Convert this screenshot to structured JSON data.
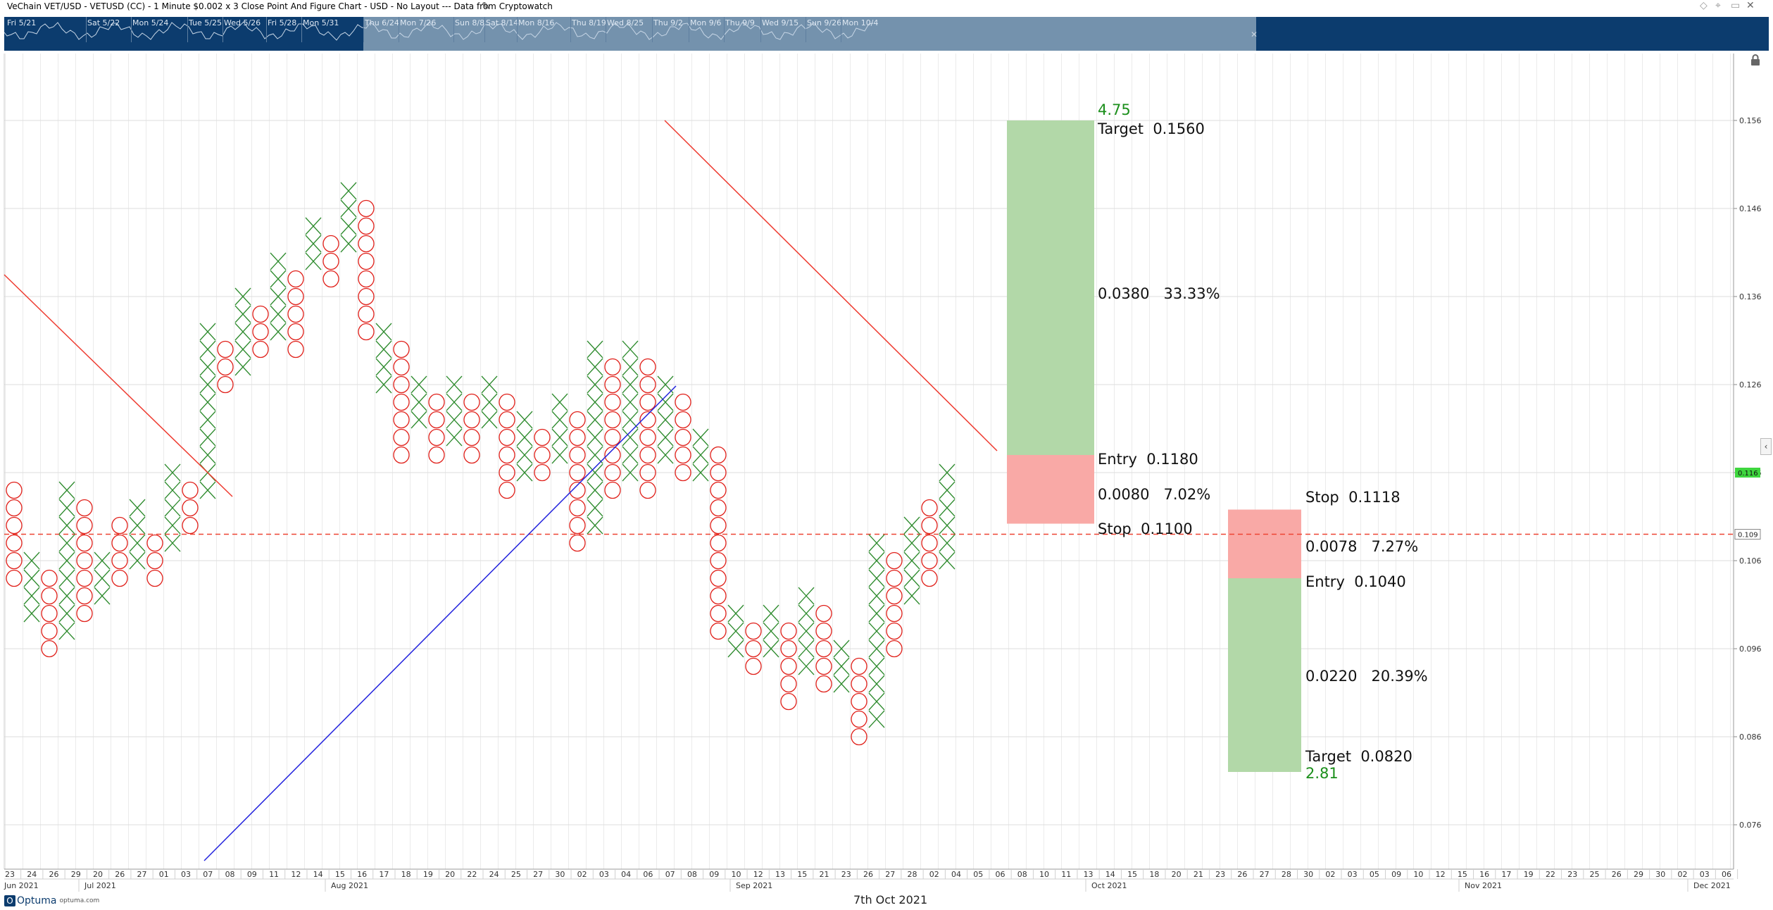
{
  "window": {
    "title": "VeChain VET/USD - VETUSD (CC) - 1 Minute $0.002 x 3 Close Point And Figure Chart - USD - No Layout --- Data from Cryptowatch"
  },
  "navigator": {
    "labels": [
      "Fri 5/21",
      "Sat 5/22",
      "Mon 5/24",
      "Tue 5/25",
      "Wed 5/26",
      "Fri 5/28",
      "Mon 5/31",
      "Thu 6/24",
      "Mon 7/26",
      "Sun 8/8",
      "Sat 8/14",
      "Mon 8/16",
      "Thu 8/19",
      "Wed 8/25",
      "Thu 9/2",
      "Mon 9/6",
      "Thu 9/9",
      "Wed 9/15",
      "Sun 9/26",
      "Mon 10/4"
    ]
  },
  "footer": {
    "date": "7th Oct 2021",
    "logo_name": "Optuma",
    "logo_url": "optuma.com"
  },
  "colors": {
    "x_mark": "#2e8b2e",
    "o_mark": "#e0201a",
    "trend_down": "#ee3a2f",
    "trend_up": "#2222dd",
    "reward_zone": "#b2d8a8",
    "risk_zone": "#f9a9a6",
    "ratio_text": "#1b8f1b",
    "price_badge": "#3ed63e",
    "nav_bg": "#0c3c6e",
    "nav_window": "#7492ad"
  },
  "chart_data": {
    "type": "point_and_figure",
    "box_size": 0.002,
    "reversal": 3,
    "ylim": [
      0.0715,
      0.1605
    ],
    "y_ticks": [
      0.156,
      0.146,
      0.136,
      0.126,
      0.116,
      0.106,
      0.096,
      0.086,
      0.076
    ],
    "last_price": 0.116,
    "stop_line_price": 0.109,
    "x_ticks": [
      "23",
      "24",
      "26",
      "29",
      "20",
      "26",
      "27",
      "01",
      "03",
      "07",
      "08",
      "09",
      "11",
      "12",
      "14",
      "15",
      "16",
      "17",
      "18",
      "19",
      "20",
      "22",
      "24",
      "25",
      "27",
      "30",
      "02",
      "03",
      "04",
      "06",
      "07",
      "08",
      "09",
      "10",
      "12",
      "13",
      "15",
      "21",
      "23",
      "26",
      "27",
      "28",
      "02",
      "04",
      "05",
      "06",
      "08",
      "10",
      "11",
      "13",
      "14",
      "15",
      "18",
      "20",
      "21",
      "23",
      "26",
      "27",
      "28",
      "30",
      "02",
      "03",
      "05",
      "09",
      "10",
      "12",
      "15",
      "16",
      "17",
      "19",
      "22",
      "23",
      "25",
      "26",
      "29",
      "30",
      "02",
      "03",
      "06"
    ],
    "month_labels": [
      "Jun 2021",
      "Jul 2021",
      "Aug 2021",
      "Sep 2021",
      "Oct 2021",
      "Nov 2021",
      "Dec 2021"
    ],
    "columns": [
      {
        "type": "O",
        "high": 0.114,
        "low": 0.104
      },
      {
        "type": "X",
        "high": 0.106,
        "low": 0.1
      },
      {
        "type": "O",
        "high": 0.104,
        "low": 0.096
      },
      {
        "type": "X",
        "high": 0.114,
        "low": 0.098
      },
      {
        "type": "O",
        "high": 0.112,
        "low": 0.1
      },
      {
        "type": "X",
        "high": 0.106,
        "low": 0.102
      },
      {
        "type": "O",
        "high": 0.11,
        "low": 0.104
      },
      {
        "type": "X",
        "high": 0.112,
        "low": 0.106
      },
      {
        "type": "O",
        "high": 0.108,
        "low": 0.104
      },
      {
        "type": "X",
        "high": 0.116,
        "low": 0.108
      },
      {
        "type": "O",
        "high": 0.114,
        "low": 0.11
      },
      {
        "type": "X",
        "high": 0.132,
        "low": 0.114
      },
      {
        "type": "O",
        "high": 0.13,
        "low": 0.126
      },
      {
        "type": "X",
        "high": 0.136,
        "low": 0.128
      },
      {
        "type": "O",
        "high": 0.134,
        "low": 0.13
      },
      {
        "type": "X",
        "high": 0.14,
        "low": 0.132
      },
      {
        "type": "O",
        "high": 0.138,
        "low": 0.13
      },
      {
        "type": "X",
        "high": 0.144,
        "low": 0.14
      },
      {
        "type": "O",
        "high": 0.142,
        "low": 0.138
      },
      {
        "type": "X",
        "high": 0.148,
        "low": 0.142
      },
      {
        "type": "O",
        "high": 0.146,
        "low": 0.132
      },
      {
        "type": "X",
        "high": 0.132,
        "low": 0.126
      },
      {
        "type": "O",
        "high": 0.13,
        "low": 0.118
      },
      {
        "type": "X",
        "high": 0.126,
        "low": 0.122
      },
      {
        "type": "O",
        "high": 0.124,
        "low": 0.118
      },
      {
        "type": "X",
        "high": 0.126,
        "low": 0.12
      },
      {
        "type": "O",
        "high": 0.124,
        "low": 0.118
      },
      {
        "type": "X",
        "high": 0.126,
        "low": 0.122
      },
      {
        "type": "O",
        "high": 0.124,
        "low": 0.114
      },
      {
        "type": "X",
        "high": 0.122,
        "low": 0.116
      },
      {
        "type": "O",
        "high": 0.12,
        "low": 0.116
      },
      {
        "type": "X",
        "high": 0.124,
        "low": 0.118
      },
      {
        "type": "O",
        "high": 0.122,
        "low": 0.108
      },
      {
        "type": "X",
        "high": 0.13,
        "low": 0.11
      },
      {
        "type": "O",
        "high": 0.128,
        "low": 0.114
      },
      {
        "type": "X",
        "high": 0.13,
        "low": 0.116
      },
      {
        "type": "O",
        "high": 0.128,
        "low": 0.114
      },
      {
        "type": "X",
        "high": 0.126,
        "low": 0.118
      },
      {
        "type": "O",
        "high": 0.124,
        "low": 0.116
      },
      {
        "type": "X",
        "high": 0.12,
        "low": 0.116
      },
      {
        "type": "O",
        "high": 0.118,
        "low": 0.098
      },
      {
        "type": "X",
        "high": 0.1,
        "low": 0.096
      },
      {
        "type": "O",
        "high": 0.098,
        "low": 0.094
      },
      {
        "type": "X",
        "high": 0.1,
        "low": 0.096
      },
      {
        "type": "O",
        "high": 0.098,
        "low": 0.09
      },
      {
        "type": "X",
        "high": 0.102,
        "low": 0.094
      },
      {
        "type": "O",
        "high": 0.1,
        "low": 0.092
      },
      {
        "type": "X",
        "high": 0.096,
        "low": 0.092
      },
      {
        "type": "O",
        "high": 0.094,
        "low": 0.086
      },
      {
        "type": "X",
        "high": 0.108,
        "low": 0.088
      },
      {
        "type": "O",
        "high": 0.106,
        "low": 0.096
      },
      {
        "type": "X",
        "high": 0.11,
        "low": 0.102
      },
      {
        "type": "O",
        "high": 0.112,
        "low": 0.104
      },
      {
        "type": "X",
        "high": 0.116,
        "low": 0.106
      }
    ],
    "trendlines": [
      {
        "role": "bearish_resistance",
        "color": "red"
      },
      {
        "role": "bullish_support",
        "color": "blue"
      },
      {
        "role": "bearish_resistance",
        "color": "red"
      }
    ],
    "long_setup": {
      "ratio": "4.75",
      "target_label": "Target  0.1560",
      "reward_label": "0.0380   33.33%",
      "entry_label": "Entry  0.1180",
      "risk_label": "0.0080   7.02%",
      "stop_label": "Stop  0.1100",
      "target": 0.156,
      "entry": 0.118,
      "stop": 0.11
    },
    "short_setup": {
      "ratio": "2.81",
      "stop_label": "Stop  0.1118",
      "risk_label": "0.0078   7.27%",
      "entry_label": "Entry  0.1040",
      "reward_label": "0.0220   20.39%",
      "target_label": "Target  0.0820",
      "stop": 0.1118,
      "entry": 0.104,
      "target": 0.082
    }
  }
}
